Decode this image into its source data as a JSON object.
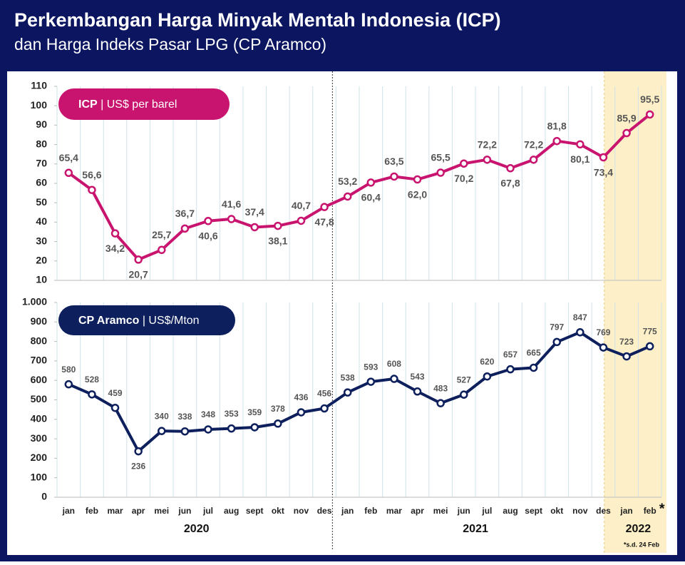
{
  "header": {
    "title": "Perkembangan Harga Minyak Mentah Indonesia (ICP)",
    "subtitle": "dan Harga Indeks Pasar LPG (CP Aramco)"
  },
  "chart_data": [
    {
      "type": "line",
      "categories": [
        "jan",
        "feb",
        "mar",
        "apr",
        "mei",
        "jun",
        "jul",
        "aug",
        "sept",
        "okt",
        "nov",
        "des",
        "jan",
        "feb",
        "mar",
        "apr",
        "mei",
        "jun",
        "jul",
        "aug",
        "sept",
        "okt",
        "nov",
        "des",
        "jan",
        "feb"
      ],
      "series": [
        {
          "name": "ICP",
          "unit": "US$ per barel",
          "color": "#c8146e",
          "values": [
            65.4,
            56.6,
            34.2,
            20.7,
            25.7,
            36.7,
            40.6,
            41.6,
            37.4,
            38.1,
            40.7,
            47.8,
            53.2,
            60.4,
            63.5,
            62.0,
            65.5,
            70.2,
            72.2,
            67.8,
            72.2,
            81.8,
            80.1,
            73.4,
            85.9,
            95.5
          ],
          "value_labels": [
            "65,4",
            "56,6",
            "34,2",
            "20,7",
            "25,7",
            "36,7",
            "40,6",
            "41,6",
            "37,4",
            "38,1",
            "40,7",
            "47,8",
            "53,2",
            "60,4",
            "63,5",
            "62,0",
            "65,5",
            "70,2",
            "72,2",
            "67,8",
            "72,2",
            "81,8",
            "80,1",
            "73,4",
            "85,9",
            "95,5"
          ]
        }
      ],
      "ylim": [
        10,
        110
      ],
      "yticks": [
        10,
        20,
        30,
        40,
        50,
        60,
        70,
        80,
        90,
        100,
        110
      ]
    },
    {
      "type": "line",
      "categories": [
        "jan",
        "feb",
        "mar",
        "apr",
        "mei",
        "jun",
        "jul",
        "aug",
        "sept",
        "okt",
        "nov",
        "des",
        "jan",
        "feb",
        "mar",
        "apr",
        "mei",
        "jun",
        "jul",
        "aug",
        "sept",
        "okt",
        "nov",
        "des",
        "jan",
        "feb"
      ],
      "series": [
        {
          "name": "CP Aramco",
          "unit": "US$/Mton",
          "color": "#0d1f5c",
          "values": [
            580,
            528,
            459,
            236,
            340,
            338,
            348,
            353,
            359,
            378,
            436,
            456,
            538,
            593,
            608,
            543,
            483,
            527,
            620,
            657,
            665,
            797,
            847,
            769,
            723,
            775
          ]
        }
      ],
      "ylim": [
        0,
        1000
      ],
      "yticks": [
        0,
        100,
        200,
        300,
        400,
        500,
        600,
        700,
        800,
        900,
        {
          "value": 1000,
          "label": "1.000"
        }
      ],
      "years": [
        "2020",
        "2021",
        "2022"
      ],
      "footnote_mark": "*",
      "footnote": "*s.d. 24 Feb"
    }
  ]
}
